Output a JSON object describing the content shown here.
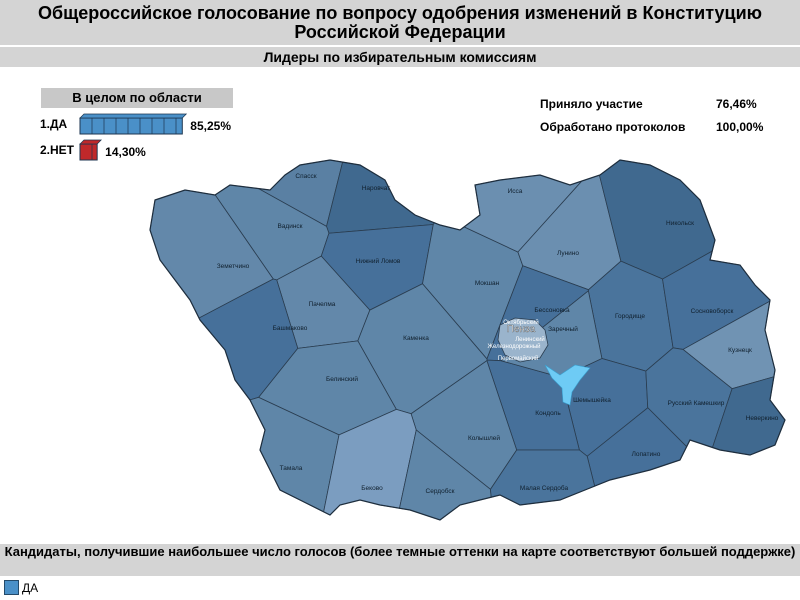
{
  "header": {
    "title": "Общероссийское голосование по вопросу одобрения изменений в Конституцию Российской Федерации",
    "subtitle": "Лидеры по избирательным комиссиям"
  },
  "summary": {
    "title": "В целом по области",
    "results": [
      {
        "label": "1.ДА",
        "value": 85.25,
        "value_label": "85,25%",
        "color": "#4a90c8"
      },
      {
        "label": "2.НЕТ",
        "value": 14.3,
        "value_label": "14,30%",
        "color": "#c0282a"
      }
    ],
    "stats": [
      {
        "label": "Приняло участие",
        "value": "76,46%"
      },
      {
        "label": "Обработано протоколов",
        "value": "100,00%"
      }
    ]
  },
  "regions": [
    {
      "name": "Спасск",
      "color": "#5a80a3"
    },
    {
      "name": "Наровчат",
      "color": "#40698f"
    },
    {
      "name": "Вадинск",
      "color": "#5f86a8"
    },
    {
      "name": "Нижний Ломов",
      "color": "#46709a"
    },
    {
      "name": "Земетчино",
      "color": "#6388aa"
    },
    {
      "name": "Мокшан",
      "color": "#5f86a8"
    },
    {
      "name": "Исса",
      "color": "#6b8fb0"
    },
    {
      "name": "Лунино",
      "color": "#6b8fb0"
    },
    {
      "name": "Никольск",
      "color": "#40698f"
    },
    {
      "name": "Пачелма",
      "color": "#6388aa"
    },
    {
      "name": "Башмаково",
      "color": "#46709a"
    },
    {
      "name": "Каменка",
      "color": "#5f86a8"
    },
    {
      "name": "Бессоновка",
      "color": "#46709a"
    },
    {
      "name": "Городище",
      "color": "#4a749c"
    },
    {
      "name": "Сосновоборск",
      "color": "#46709a"
    },
    {
      "name": "Кузнецк",
      "color": "#7093b3"
    },
    {
      "name": "Белинский",
      "color": "#5f86a8"
    },
    {
      "name": "Шемышейка",
      "color": "#46709a"
    },
    {
      "name": "Кондоль",
      "color": "#46709a"
    },
    {
      "name": "Русский Камешкир",
      "color": "#4a749c"
    },
    {
      "name": "Неверкино",
      "color": "#40698f"
    },
    {
      "name": "Колышлей",
      "color": "#5f86a8"
    },
    {
      "name": "Лопатино",
      "color": "#46709a"
    },
    {
      "name": "Тамала",
      "color": "#5f86a8"
    },
    {
      "name": "Беково",
      "color": "#7b9dc0"
    },
    {
      "name": "Сердобск",
      "color": "#5f86a8"
    },
    {
      "name": "Малая Сердоба",
      "color": "#4a749c"
    },
    {
      "name": "Заречный",
      "color": "#5f86a8"
    }
  ],
  "city": {
    "name": "Пенза",
    "districts": [
      "Октябрьский",
      "Ленинский",
      "Железнодорожный",
      "Первомайский"
    ]
  },
  "footer": {
    "caption": "Кандидаты, получившие наибольшее число голосов (более темные оттенки на карте соответствуют большей поддержке)",
    "legend": "ДА"
  }
}
